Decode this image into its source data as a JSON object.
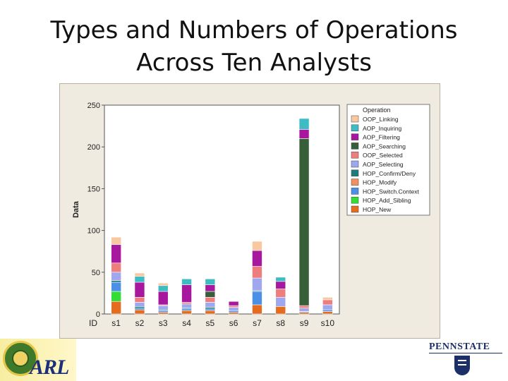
{
  "slide": {
    "title_line1": "Types and Numbers of Operations",
    "title_line2": "Across Ten Analysts"
  },
  "logos": {
    "left": "ARL",
    "right": "PENNSTATE"
  },
  "chart_data": {
    "type": "bar",
    "stacked": true,
    "ylabel": "Data",
    "x_axis_label": "ID",
    "ylim": [
      0,
      250
    ],
    "yticks": [
      0,
      50,
      100,
      150,
      200,
      250
    ],
    "grid": false,
    "legend": {
      "title": "Operation",
      "position": "right"
    },
    "categories": [
      "s1",
      "s2",
      "s3",
      "s4",
      "s5",
      "s6",
      "s7",
      "s8",
      "s9",
      "s10"
    ],
    "series": [
      {
        "name": "HOP_New",
        "color": "#e46c1e",
        "values": [
          15,
          5,
          2,
          4,
          4,
          2,
          11,
          9,
          2,
          3
        ]
      },
      {
        "name": "HOP_Add_Sibling",
        "color": "#33dd33",
        "values": [
          12,
          0,
          0,
          0,
          0,
          0,
          0,
          0,
          0,
          0
        ]
      },
      {
        "name": "HOP_Switch.Context",
        "color": "#4c8fe6",
        "values": [
          11,
          2,
          2,
          2,
          2,
          2,
          16,
          0,
          1,
          2
        ]
      },
      {
        "name": "HOP_Modify",
        "color": "#f29060",
        "values": [
          0,
          0,
          0,
          0,
          0,
          0,
          0,
          0,
          0,
          0
        ]
      },
      {
        "name": "HOP_Confirm/Deny",
        "color": "#1f7a7a",
        "values": [
          2,
          2,
          1,
          1,
          2,
          0,
          1,
          0,
          0,
          0
        ]
      },
      {
        "name": "AOP_Selecting",
        "color": "#9fa8ef",
        "values": [
          10,
          5,
          5,
          5,
          6,
          4,
          15,
          11,
          4,
          6
        ]
      },
      {
        "name": "OOP_Selected",
        "color": "#ee7d7d",
        "values": [
          11,
          6,
          1,
          2,
          6,
          2,
          14,
          10,
          3,
          6
        ]
      },
      {
        "name": "AOP_Searching",
        "color": "#365e38",
        "values": [
          0,
          0,
          0,
          0,
          7,
          0,
          0,
          0,
          200,
          0
        ]
      },
      {
        "name": "AOP_Filtering",
        "color": "#a8189e",
        "values": [
          22,
          18,
          16,
          21,
          8,
          5,
          19,
          9,
          11,
          0
        ]
      },
      {
        "name": "AOP_Inquiring",
        "color": "#3dbcc4",
        "values": [
          0,
          7,
          7,
          7,
          7,
          0,
          0,
          5,
          13,
          0
        ]
      },
      {
        "name": "OOP_Linking",
        "color": "#f8c8a0",
        "values": [
          9,
          4,
          3,
          0,
          0,
          0,
          11,
          0,
          0,
          3
        ]
      }
    ]
  }
}
